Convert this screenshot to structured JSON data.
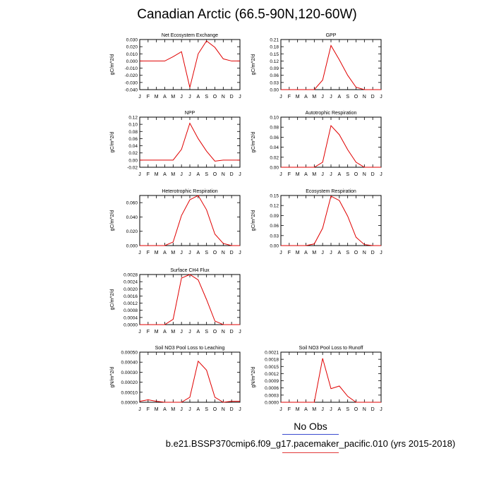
{
  "title": "Canadian Arctic (66.5-90N,120-60W)",
  "legend": {
    "obs_label": "No Obs",
    "obs_color": "#3a4bd0"
  },
  "footer": "b.e21.BSSP370cmip6.f09_g17.pacemaker_pacific.010 (yrs 2015-2018)",
  "series_color": "#e00000",
  "months": [
    "J",
    "F",
    "M",
    "A",
    "M",
    "J",
    "J",
    "A",
    "S",
    "O",
    "N",
    "D",
    "J"
  ],
  "chart_data": [
    {
      "type": "line",
      "title": "Net Ecosystem Exchange",
      "ylabel": "gC/m^2/d",
      "ylim": [
        -0.04,
        0.03
      ],
      "yticks": [
        "0.030",
        "0.020",
        "0.010",
        "0.000",
        "-0.010",
        "-0.020",
        "-0.030",
        "-0.040"
      ],
      "ytick_values": [
        0.03,
        0.02,
        0.01,
        0.0,
        -0.01,
        -0.02,
        -0.03,
        -0.04
      ],
      "values": [
        0.0,
        0.0,
        0.0,
        0.0,
        0.006,
        0.013,
        -0.037,
        0.01,
        0.028,
        0.019,
        0.003,
        0.0,
        0.0
      ]
    },
    {
      "type": "line",
      "title": "GPP",
      "ylabel": "gC/m^2/d",
      "ylim": [
        0,
        0.21
      ],
      "yticks": [
        "0.21",
        "0.18",
        "0.15",
        "0.12",
        "0.09",
        "0.06",
        "0.03",
        "0.00"
      ],
      "ytick_values": [
        0.21,
        0.18,
        0.15,
        0.12,
        0.09,
        0.06,
        0.03,
        0.0
      ],
      "values": [
        0.0,
        0.0,
        0.0,
        0.0,
        0.0,
        0.04,
        0.185,
        0.125,
        0.06,
        0.01,
        0.0,
        0.0,
        0.0
      ]
    },
    {
      "type": "line",
      "title": "NPP",
      "ylabel": "gC/m^2/d",
      "ylim": [
        -0.02,
        0.12
      ],
      "yticks": [
        "0.12",
        "0.10",
        "0.08",
        "0.06",
        "0.04",
        "0.02",
        "0.00",
        "-0.02"
      ],
      "ytick_values": [
        0.12,
        0.1,
        0.08,
        0.06,
        0.04,
        0.02,
        0.0,
        -0.02
      ],
      "values": [
        0.0,
        0.0,
        0.0,
        0.0,
        0.0,
        0.03,
        0.103,
        0.06,
        0.025,
        -0.003,
        0.0,
        0.0,
        0.0
      ]
    },
    {
      "type": "line",
      "title": "Autotrophic Respiration",
      "ylabel": "gC/m^2/d",
      "ylim": [
        0,
        0.1
      ],
      "yticks": [
        "0.10",
        "0.08",
        "0.06",
        "0.04",
        "0.02",
        "0.00"
      ],
      "ytick_values": [
        0.1,
        0.08,
        0.06,
        0.04,
        0.02,
        0.0
      ],
      "values": [
        0.0,
        0.0,
        0.0,
        0.0,
        0.0,
        0.01,
        0.083,
        0.065,
        0.035,
        0.01,
        0.0,
        0.0,
        0.0
      ]
    },
    {
      "type": "line",
      "title": "Heterotrophic Respiration",
      "ylabel": "gC/m^2/d",
      "ylim": [
        0,
        0.07
      ],
      "yticks": [
        "0.060",
        "0.040",
        "0.020",
        "0.000"
      ],
      "ytick_values": [
        0.06,
        0.04,
        0.02,
        0.0
      ],
      "values": [
        0.0,
        0.0,
        0.0,
        0.0,
        0.005,
        0.042,
        0.064,
        0.07,
        0.05,
        0.016,
        0.003,
        0.0,
        0.0
      ]
    },
    {
      "type": "line",
      "title": "Ecosystem Respiration",
      "ylabel": "gC/m^2/d",
      "ylim": [
        0,
        0.15
      ],
      "yticks": [
        "0.15",
        "0.12",
        "0.09",
        "0.06",
        "0.03",
        "0.00"
      ],
      "ytick_values": [
        0.15,
        0.12,
        0.09,
        0.06,
        0.03,
        0.0
      ],
      "values": [
        0.0,
        0.0,
        0.0,
        0.0,
        0.005,
        0.052,
        0.148,
        0.135,
        0.088,
        0.025,
        0.003,
        0.0,
        0.0
      ]
    },
    {
      "type": "line",
      "title": "Surface CH4 Flux",
      "ylabel": "gC/m^2/d",
      "ylim": [
        0,
        0.0028
      ],
      "yticks": [
        "0.0028",
        "0.0024",
        "0.0020",
        "0.0016",
        "0.0012",
        "0.0008",
        "0.0004",
        "0.0000"
      ],
      "ytick_values": [
        0.0028,
        0.0024,
        0.002,
        0.0016,
        0.0012,
        0.0008,
        0.0004,
        0.0
      ],
      "values": [
        0.0,
        0.0,
        0.0,
        0.0,
        0.0003,
        0.0026,
        0.0028,
        0.0025,
        0.0014,
        0.0002,
        0.0,
        0.0,
        0.0
      ]
    },
    null,
    {
      "type": "line",
      "title": "Soil NO3 Pool Loss to Leaching",
      "ylabel": "gN/m^2/d",
      "ylim": [
        0,
        0.0005
      ],
      "yticks": [
        "0.00050",
        "0.00040",
        "0.00030",
        "0.00020",
        "0.00010",
        "0.00000"
      ],
      "ytick_values": [
        0.0005,
        0.0004,
        0.0003,
        0.0002,
        0.0001,
        0.0
      ],
      "values": [
        1e-05,
        2.5e-05,
        1e-05,
        0.0,
        0.0,
        0.0,
        5e-05,
        0.00041,
        0.00032,
        5e-05,
        0.0,
        1e-05,
        1e-05
      ]
    },
    {
      "type": "line",
      "title": "Soil NO3 Pool Loss to Runoff",
      "ylabel": "gN/m^2/d",
      "ylim": [
        0,
        0.0021
      ],
      "yticks": [
        "0.0021",
        "0.0018",
        "0.0015",
        "0.0012",
        "0.0009",
        "0.0006",
        "0.0003",
        "0.0000"
      ],
      "ytick_values": [
        0.0021,
        0.0018,
        0.0015,
        0.0012,
        0.0009,
        0.0006,
        0.0003,
        0.0
      ],
      "values": [
        0.0,
        0.0,
        0.0,
        0.0,
        0.0,
        0.00184,
        0.00057,
        0.00068,
        0.00025,
        0.0,
        0.0,
        0.0,
        0.0
      ]
    }
  ]
}
